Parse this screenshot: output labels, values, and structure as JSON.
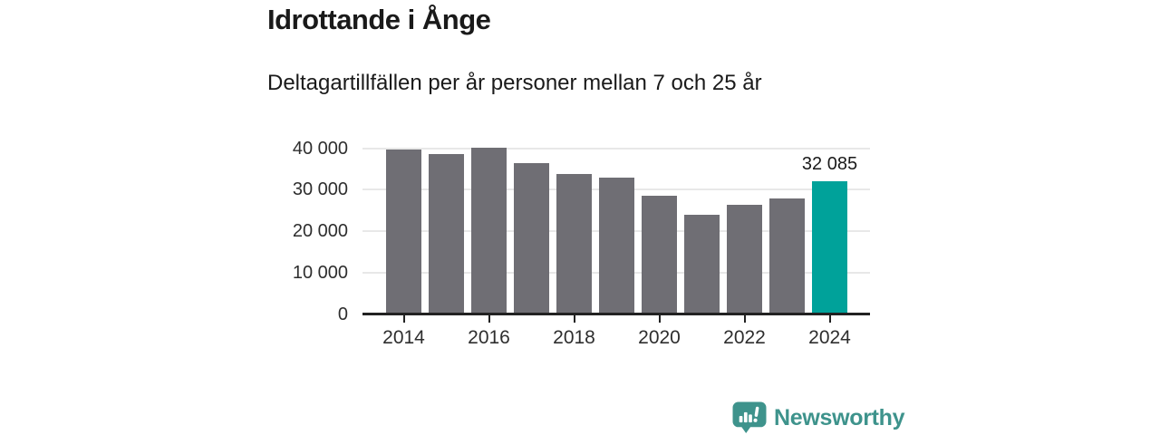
{
  "page": {
    "background": "#FFFFFF"
  },
  "header": {
    "title": "Idrottande i Ånge",
    "subtitle": "Deltagartillfällen per år personer mellan 7 och 25 år"
  },
  "chart_data": {
    "type": "bar",
    "categories": [
      "2014",
      "2015",
      "2016",
      "2017",
      "2018",
      "2019",
      "2020",
      "2021",
      "2022",
      "2023",
      "2024"
    ],
    "values": [
      39600,
      38500,
      40200,
      36400,
      33800,
      32900,
      28500,
      24000,
      26300,
      27900,
      32085
    ],
    "highlight_index": 10,
    "value_label": "32 085",
    "title": "Idrottande i Ånge",
    "subtitle": "Deltagartillfällen per år personer mellan 7 och 25 år",
    "xlabel": "",
    "ylabel": "",
    "ylim": [
      0,
      40000
    ],
    "yticks": [
      {
        "value": 0,
        "label": "0"
      },
      {
        "value": 10000,
        "label": "10 000"
      },
      {
        "value": 20000,
        "label": "20 000"
      },
      {
        "value": 30000,
        "label": "30 000"
      },
      {
        "value": 40000,
        "label": "40 000"
      }
    ],
    "xticks": [
      {
        "index": 0,
        "label": "2014"
      },
      {
        "index": 2,
        "label": "2016"
      },
      {
        "index": 4,
        "label": "2018"
      },
      {
        "index": 6,
        "label": "2020"
      },
      {
        "index": 8,
        "label": "2022"
      },
      {
        "index": 10,
        "label": "2024"
      }
    ],
    "grid": true,
    "legend": "none",
    "colors": {
      "bar": "#6F6E74",
      "highlight": "#00A29A",
      "grid": "#E8E8E8",
      "axis": "#222222",
      "text": "#1A1A1A"
    }
  },
  "branding": {
    "logo_text": "Newsworthy",
    "logo_color": "#3E938C",
    "logo_icon": "newsworthy-chart-bubble-icon"
  }
}
